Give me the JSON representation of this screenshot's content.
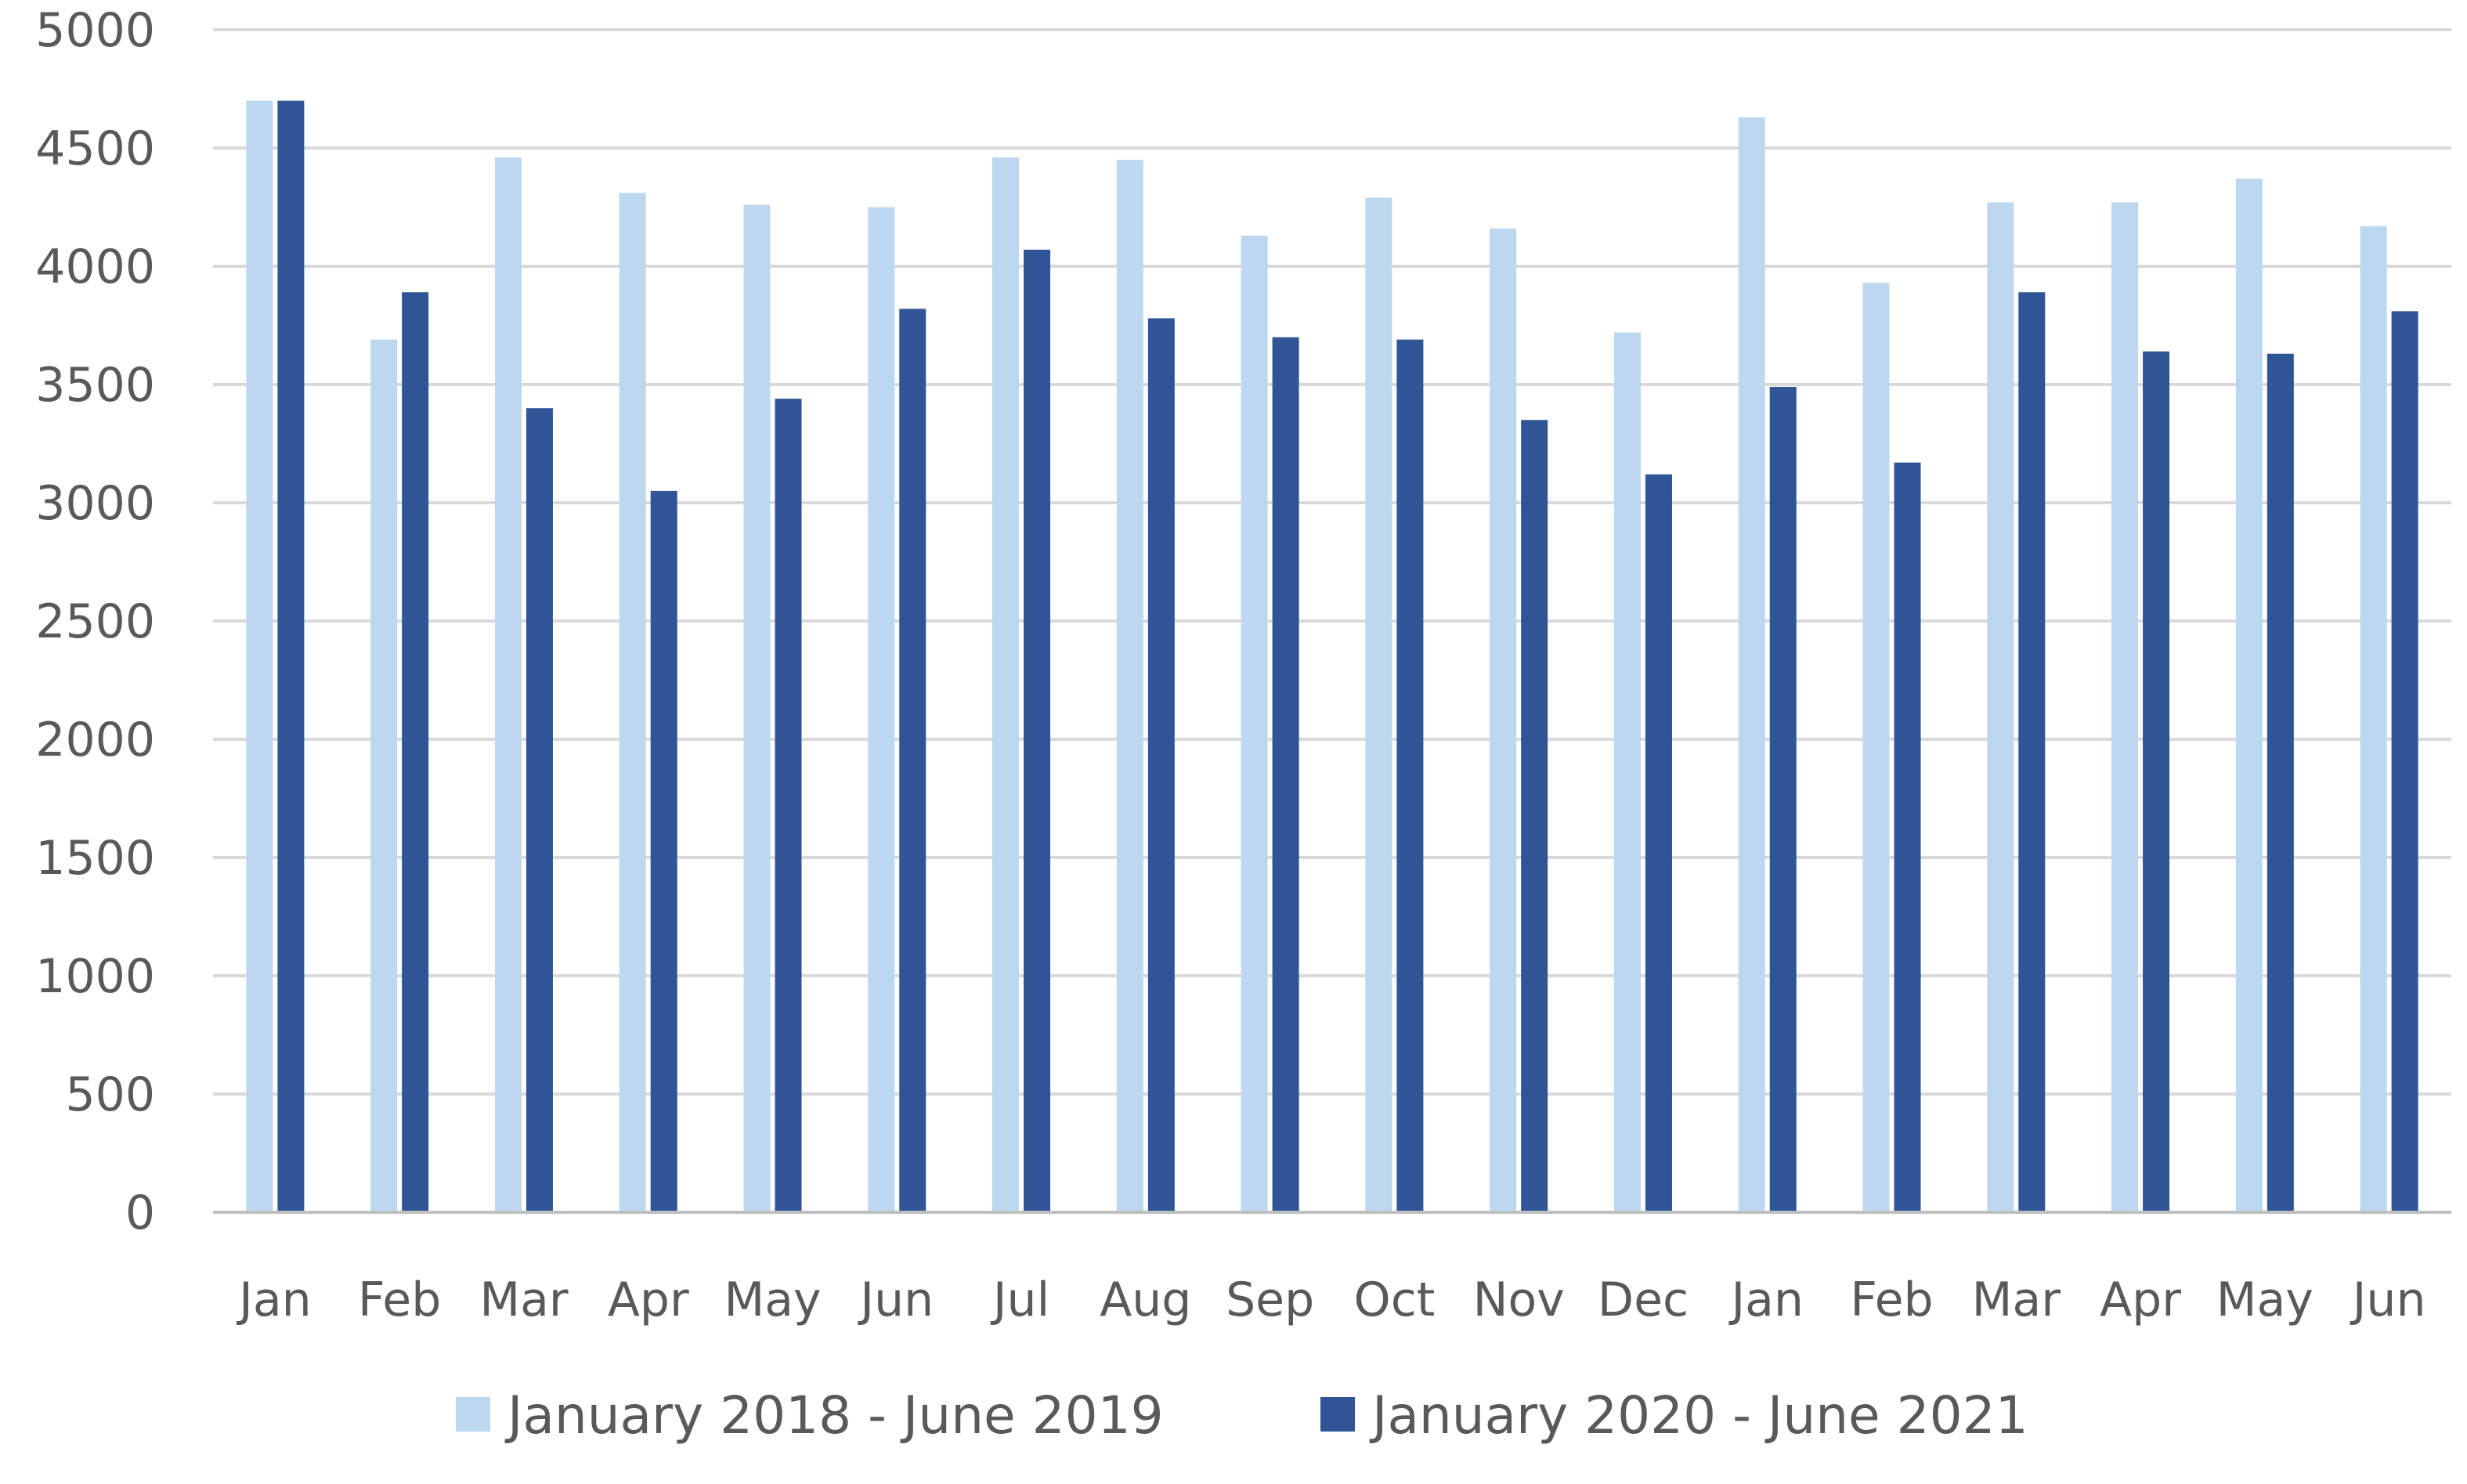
{
  "chart_data": {
    "type": "bar",
    "title": "",
    "xlabel": "",
    "ylabel": "",
    "ylim": [
      0,
      5000
    ],
    "yticks": [
      0,
      500,
      1000,
      1500,
      2000,
      2500,
      3000,
      3500,
      4000,
      4500,
      5000
    ],
    "grid": true,
    "legend_position": "bottom",
    "categories": [
      "Jan",
      "Feb",
      "Mar",
      "Apr",
      "May",
      "Jun",
      "Jul",
      "Aug",
      "Sep",
      "Oct",
      "Nov",
      "Dec",
      "Jan",
      "Feb",
      "Mar",
      "Apr",
      "May",
      "Jun"
    ],
    "series": [
      {
        "name": "January 2018 - June 2019",
        "color": "#bdd7ee",
        "values": [
          4700,
          3690,
          4460,
          4310,
          4260,
          4250,
          4460,
          4450,
          4130,
          4290,
          4160,
          3720,
          4630,
          3930,
          4270,
          4270,
          4370,
          4170
        ]
      },
      {
        "name": "January 2020 - June 2021",
        "color": "#2f5597",
        "values": [
          4700,
          3890,
          3400,
          3050,
          3440,
          3820,
          4070,
          3780,
          3700,
          3690,
          3350,
          3120,
          3490,
          3170,
          3890,
          3640,
          3630,
          3810
        ]
      }
    ],
    "gridline_color": "#d9d9d9",
    "axis_color": "#bfbfbf",
    "text_color": "#595959"
  }
}
